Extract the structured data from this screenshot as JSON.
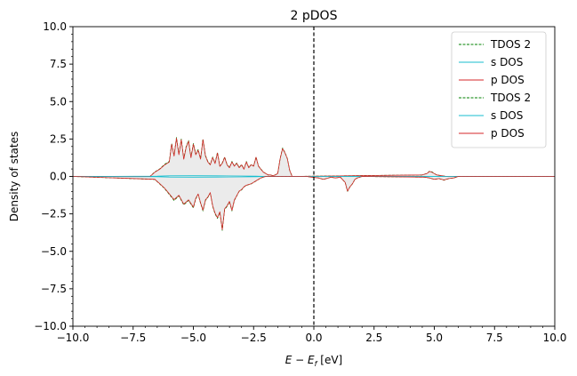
{
  "chart_data": {
    "type": "line",
    "title": "2 pDOS",
    "xlabel_main": "E − E",
    "xlabel_sub": "f",
    "xlabel_unit": " [eV]",
    "ylabel": "Density of states",
    "xlim": [
      -10,
      10
    ],
    "ylim": [
      -10,
      10
    ],
    "xticks": [
      -10,
      -7.5,
      -5,
      -2.5,
      0,
      2.5,
      5,
      7.5,
      10
    ],
    "xtick_labels": [
      "−10.0",
      "−7.5",
      "−5.0",
      "−2.5",
      "0.0",
      "2.5",
      "5.0",
      "7.5",
      "10.0"
    ],
    "yticks": [
      -10,
      -7.5,
      -5,
      -2.5,
      0,
      2.5,
      5,
      7.5,
      10
    ],
    "ytick_labels": [
      "−10.0",
      "−7.5",
      "−5.0",
      "−2.5",
      "0.0",
      "2.5",
      "5.0",
      "7.5",
      "10.0"
    ],
    "fermi_level": 0,
    "legend_position": "top-right",
    "legend": [
      {
        "label": "TDOS 2",
        "color": "#008000",
        "style": "dashed"
      },
      {
        "label": "s DOS",
        "color": "#17becf",
        "style": "solid"
      },
      {
        "label": "p DOS",
        "color": "#d62728",
        "style": "solid"
      },
      {
        "label": "TDOS 2",
        "color": "#008000",
        "style": "dashed"
      },
      {
        "label": "s DOS",
        "color": "#17becf",
        "style": "solid"
      },
      {
        "label": "p DOS",
        "color": "#d62728",
        "style": "solid"
      }
    ],
    "fill_color": "#d3d3d3",
    "series": [
      {
        "legend_index": 0,
        "role": "tdos_up",
        "x": [
          -10,
          -6.8,
          -6.6,
          -6.4,
          -6.2,
          -6.0,
          -5.9,
          -5.8,
          -5.7,
          -5.6,
          -5.5,
          -5.4,
          -5.3,
          -5.2,
          -5.1,
          -5.0,
          -4.9,
          -4.8,
          -4.7,
          -4.6,
          -4.5,
          -4.4,
          -4.3,
          -4.2,
          -4.1,
          -4.0,
          -3.9,
          -3.8,
          -3.7,
          -3.6,
          -3.5,
          -3.4,
          -3.3,
          -3.2,
          -3.1,
          -3.0,
          -2.9,
          -2.8,
          -2.7,
          -2.6,
          -2.5,
          -2.4,
          -2.3,
          -2.2,
          -2.1,
          -2.0,
          -1.9,
          -1.8,
          -1.7,
          -1.6,
          -1.5,
          -1.4,
          -1.3,
          -1.2,
          -1.1,
          -1.0,
          -0.9,
          4.5,
          4.7,
          4.8,
          4.9,
          5.0,
          5.1,
          5.3,
          5.5,
          10
        ],
        "y": [
          0,
          0,
          0.3,
          0.5,
          0.8,
          1.0,
          2.2,
          1.4,
          2.6,
          1.5,
          2.5,
          1.2,
          2.0,
          2.4,
          1.3,
          2.2,
          1.5,
          1.8,
          1.2,
          2.5,
          1.4,
          1.0,
          0.8,
          1.3,
          0.9,
          1.6,
          0.7,
          0.9,
          1.3,
          0.8,
          0.6,
          1.0,
          0.7,
          0.9,
          0.6,
          0.8,
          0.5,
          1.0,
          0.6,
          0.8,
          0.7,
          1.3,
          0.7,
          0.5,
          0.3,
          0.2,
          0.1,
          0.1,
          0.05,
          0.1,
          0.2,
          1.2,
          1.9,
          1.6,
          1.2,
          0.4,
          0,
          0.1,
          0.2,
          0.35,
          0.3,
          0.2,
          0.1,
          0.05,
          0,
          0
        ]
      },
      {
        "legend_index": 1,
        "role": "s_up",
        "x": [
          -10,
          -6.5,
          -6.0,
          -5.0,
          -4.0,
          -3.0,
          -2.4,
          -2.0,
          10
        ],
        "y": [
          0,
          0.02,
          0.04,
          0.05,
          0.04,
          0.03,
          0.02,
          0,
          0
        ]
      },
      {
        "legend_index": 2,
        "role": "p_up",
        "x": [
          -10,
          -6.8,
          -6.6,
          -6.4,
          -6.2,
          -6.0,
          -5.9,
          -5.8,
          -5.7,
          -5.6,
          -5.5,
          -5.4,
          -5.3,
          -5.2,
          -5.1,
          -5.0,
          -4.9,
          -4.8,
          -4.7,
          -4.6,
          -4.5,
          -4.4,
          -4.3,
          -4.2,
          -4.1,
          -4.0,
          -3.9,
          -3.8,
          -3.7,
          -3.6,
          -3.5,
          -3.4,
          -3.3,
          -3.2,
          -3.1,
          -3.0,
          -2.9,
          -2.8,
          -2.7,
          -2.6,
          -2.5,
          -2.4,
          -2.3,
          -2.2,
          -2.1,
          -2.0,
          -1.9,
          -1.8,
          -1.7,
          -1.6,
          -1.5,
          -1.4,
          -1.3,
          -1.2,
          -1.1,
          -1.0,
          -0.9,
          4.5,
          4.7,
          4.8,
          4.9,
          5.0,
          5.1,
          5.3,
          5.5,
          10
        ],
        "y": [
          0,
          0,
          0.28,
          0.48,
          0.76,
          0.96,
          2.15,
          1.36,
          2.55,
          1.45,
          2.45,
          1.15,
          1.95,
          2.35,
          1.25,
          2.15,
          1.45,
          1.75,
          1.16,
          2.45,
          1.36,
          0.96,
          0.77,
          1.27,
          0.86,
          1.56,
          0.67,
          0.87,
          1.27,
          0.77,
          0.58,
          0.97,
          0.68,
          0.87,
          0.58,
          0.77,
          0.48,
          0.97,
          0.58,
          0.78,
          0.68,
          1.28,
          0.68,
          0.48,
          0.29,
          0.2,
          0.1,
          0.1,
          0.05,
          0.1,
          0.2,
          1.18,
          1.86,
          1.57,
          1.18,
          0.39,
          0,
          0.1,
          0.2,
          0.33,
          0.28,
          0.19,
          0.1,
          0.05,
          0,
          0
        ]
      },
      {
        "legend_index": 3,
        "role": "tdos_down",
        "x": [
          -10,
          -6.6,
          -6.4,
          -6.2,
          -6.0,
          -5.8,
          -5.6,
          -5.4,
          -5.2,
          -5.0,
          -4.9,
          -4.8,
          -4.7,
          -4.6,
          -4.5,
          -4.4,
          -4.3,
          -4.2,
          -4.1,
          -4.0,
          -3.9,
          -3.8,
          -3.7,
          -3.6,
          -3.5,
          -3.4,
          -3.3,
          -3.2,
          -3.1,
          -3.0,
          -2.9,
          -2.8,
          -2.6,
          -2.4,
          -2.2,
          -2.0,
          -1.0,
          -0.3,
          -0.1,
          0.2,
          0.4,
          0.6,
          0.7,
          0.9,
          1.1,
          1.3,
          1.4,
          1.5,
          1.6,
          1.7,
          1.8,
          2.0,
          4.6,
          4.8,
          5.0,
          5.2,
          5.4,
          5.6,
          5.8,
          6.0,
          10
        ],
        "y": [
          0,
          -0.2,
          -0.5,
          -0.8,
          -1.2,
          -1.6,
          -1.3,
          -1.9,
          -1.6,
          -2.1,
          -1.5,
          -1.2,
          -1.8,
          -2.3,
          -1.6,
          -1.4,
          -1.1,
          -2.0,
          -2.5,
          -2.8,
          -2.4,
          -3.6,
          -2.2,
          -2.0,
          -1.7,
          -2.3,
          -1.6,
          -1.3,
          -1.0,
          -0.9,
          -0.7,
          -0.6,
          -0.5,
          -0.3,
          -0.1,
          0,
          0,
          0,
          -0.05,
          -0.1,
          -0.2,
          -0.1,
          -0.05,
          -0.1,
          -0.05,
          -0.4,
          -1.0,
          -0.7,
          -0.5,
          -0.2,
          -0.1,
          0,
          -0.05,
          -0.1,
          -0.2,
          -0.15,
          -0.25,
          -0.15,
          -0.1,
          0,
          0
        ]
      },
      {
        "legend_index": 4,
        "role": "s_down",
        "x": [
          -10,
          -6.5,
          -6.0,
          -5.0,
          -4.0,
          -3.0,
          -2.4,
          -2.0,
          10
        ],
        "y": [
          0,
          -0.02,
          -0.04,
          -0.05,
          -0.04,
          -0.03,
          -0.02,
          0,
          0
        ]
      },
      {
        "legend_index": 5,
        "role": "p_down",
        "x": [
          -10,
          -6.6,
          -6.4,
          -6.2,
          -6.0,
          -5.8,
          -5.6,
          -5.4,
          -5.2,
          -5.0,
          -4.9,
          -4.8,
          -4.7,
          -4.6,
          -4.5,
          -4.4,
          -4.3,
          -4.2,
          -4.1,
          -4.0,
          -3.9,
          -3.8,
          -3.7,
          -3.6,
          -3.5,
          -3.4,
          -3.3,
          -3.2,
          -3.1,
          -3.0,
          -2.9,
          -2.8,
          -2.6,
          -2.4,
          -2.2,
          -2.0,
          -1.0,
          -0.3,
          -0.1,
          0.2,
          0.4,
          0.6,
          0.7,
          0.9,
          1.1,
          1.3,
          1.4,
          1.5,
          1.6,
          1.7,
          1.8,
          2.0,
          4.6,
          4.8,
          5.0,
          5.2,
          5.4,
          5.6,
          5.8,
          6.0,
          10
        ],
        "y": [
          0,
          -0.19,
          -0.48,
          -0.77,
          -1.16,
          -1.55,
          -1.26,
          -1.85,
          -1.56,
          -2.05,
          -1.46,
          -1.17,
          -1.76,
          -2.25,
          -1.56,
          -1.37,
          -1.08,
          -1.96,
          -2.45,
          -2.75,
          -2.36,
          -3.55,
          -2.16,
          -1.96,
          -1.67,
          -2.26,
          -1.57,
          -1.28,
          -0.98,
          -0.88,
          -0.69,
          -0.59,
          -0.49,
          -0.29,
          -0.1,
          0,
          0,
          0,
          -0.05,
          -0.1,
          -0.19,
          -0.1,
          -0.05,
          -0.1,
          -0.05,
          -0.39,
          -0.98,
          -0.69,
          -0.49,
          -0.2,
          -0.1,
          0,
          -0.05,
          -0.1,
          -0.19,
          -0.14,
          -0.24,
          -0.14,
          -0.1,
          0,
          0
        ]
      }
    ]
  }
}
